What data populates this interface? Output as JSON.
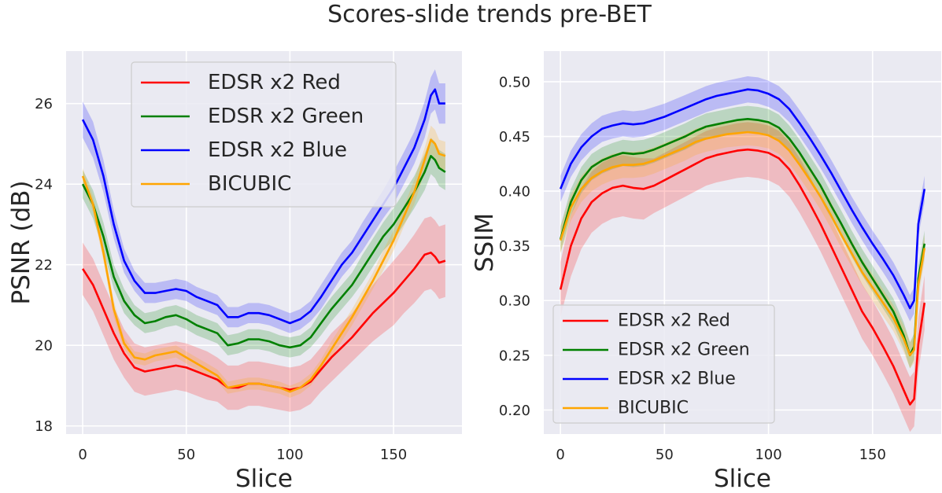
{
  "figure": {
    "title": "Scores-slide trends pre-BET"
  },
  "colors": {
    "red": "#ff0000",
    "green": "#008000",
    "blue": "#0000ff",
    "orange": "#ffa500",
    "panel_bg": "#eaeaf2",
    "grid": "#ffffff"
  },
  "chart_data": [
    {
      "type": "line",
      "title": "",
      "xlabel": "Slice",
      "ylabel": "PSNR (dB)",
      "xlim": [
        -8,
        183
      ],
      "ylim": [
        17.8,
        27.3
      ],
      "xticks": [
        0,
        50,
        100,
        150
      ],
      "xtick_labels": [
        "0",
        "50",
        "100",
        "150"
      ],
      "yticks": [
        18,
        20,
        22,
        24,
        26
      ],
      "ytick_labels": [
        "18",
        "20",
        "22",
        "24",
        "26"
      ],
      "grid": true,
      "legend_position": "top-center",
      "band": "shaded ± spread around each line",
      "x": [
        0,
        5,
        10,
        15,
        20,
        25,
        30,
        35,
        40,
        45,
        50,
        55,
        60,
        65,
        70,
        75,
        80,
        85,
        90,
        95,
        100,
        105,
        110,
        115,
        120,
        125,
        130,
        135,
        140,
        145,
        150,
        155,
        160,
        165,
        168,
        170,
        172,
        175
      ],
      "series": [
        {
          "name": "EDSR x2 Red",
          "color": "red",
          "values": [
            21.9,
            21.5,
            20.9,
            20.3,
            19.8,
            19.45,
            19.35,
            19.4,
            19.45,
            19.5,
            19.45,
            19.35,
            19.25,
            19.15,
            18.95,
            18.95,
            19.05,
            19.05,
            19.0,
            18.95,
            18.9,
            18.95,
            19.1,
            19.4,
            19.7,
            19.95,
            20.2,
            20.5,
            20.8,
            21.05,
            21.3,
            21.6,
            21.9,
            22.25,
            22.3,
            22.2,
            22.05,
            22.1
          ],
          "band": [
            0.65,
            0.65,
            0.65,
            0.65,
            0.6,
            0.6,
            0.6,
            0.6,
            0.6,
            0.6,
            0.6,
            0.6,
            0.6,
            0.55,
            0.55,
            0.55,
            0.55,
            0.55,
            0.55,
            0.55,
            0.55,
            0.55,
            0.55,
            0.55,
            0.6,
            0.6,
            0.6,
            0.65,
            0.7,
            0.75,
            0.8,
            0.8,
            0.85,
            0.9,
            0.9,
            0.9,
            0.9,
            0.9
          ]
        },
        {
          "name": "EDSR x2 Green",
          "color": "green",
          "values": [
            24.0,
            23.5,
            22.7,
            21.7,
            21.1,
            20.75,
            20.55,
            20.6,
            20.7,
            20.75,
            20.65,
            20.5,
            20.4,
            20.3,
            20.0,
            20.05,
            20.15,
            20.15,
            20.1,
            20.0,
            19.95,
            20.0,
            20.2,
            20.55,
            20.9,
            21.2,
            21.5,
            21.9,
            22.3,
            22.7,
            23.0,
            23.4,
            23.8,
            24.3,
            24.7,
            24.6,
            24.4,
            24.3
          ],
          "band": [
            0.35,
            0.35,
            0.35,
            0.3,
            0.3,
            0.25,
            0.25,
            0.25,
            0.25,
            0.25,
            0.25,
            0.25,
            0.25,
            0.25,
            0.25,
            0.25,
            0.25,
            0.25,
            0.25,
            0.25,
            0.25,
            0.25,
            0.25,
            0.3,
            0.3,
            0.3,
            0.3,
            0.35,
            0.35,
            0.35,
            0.4,
            0.4,
            0.4,
            0.45,
            0.45,
            0.45,
            0.45,
            0.45
          ]
        },
        {
          "name": "EDSR x2 Blue",
          "color": "blue",
          "values": [
            25.6,
            25.1,
            24.2,
            23.0,
            22.1,
            21.6,
            21.3,
            21.3,
            21.35,
            21.4,
            21.35,
            21.2,
            21.1,
            21.0,
            20.7,
            20.7,
            20.8,
            20.8,
            20.75,
            20.65,
            20.55,
            20.65,
            20.85,
            21.2,
            21.6,
            22.0,
            22.3,
            22.7,
            23.1,
            23.5,
            23.9,
            24.4,
            24.9,
            25.6,
            26.2,
            26.35,
            26.0,
            26.0
          ],
          "band": [
            0.45,
            0.45,
            0.4,
            0.35,
            0.3,
            0.25,
            0.25,
            0.25,
            0.25,
            0.25,
            0.25,
            0.25,
            0.25,
            0.25,
            0.25,
            0.25,
            0.25,
            0.25,
            0.25,
            0.25,
            0.25,
            0.25,
            0.25,
            0.3,
            0.3,
            0.3,
            0.3,
            0.35,
            0.35,
            0.35,
            0.4,
            0.4,
            0.4,
            0.45,
            0.45,
            0.5,
            0.5,
            0.5
          ]
        },
        {
          "name": "BICUBIC",
          "color": "orange",
          "values": [
            24.2,
            23.5,
            22.3,
            20.9,
            20.05,
            19.7,
            19.65,
            19.75,
            19.8,
            19.85,
            19.7,
            19.55,
            19.4,
            19.25,
            18.95,
            19.0,
            19.05,
            19.05,
            19.0,
            18.95,
            18.85,
            18.95,
            19.15,
            19.5,
            19.9,
            20.3,
            20.7,
            21.15,
            21.6,
            22.1,
            22.6,
            23.2,
            23.8,
            24.6,
            25.1,
            25.0,
            24.75,
            24.7
          ],
          "band": [
            0.2,
            0.2,
            0.2,
            0.2,
            0.15,
            0.15,
            0.15,
            0.15,
            0.15,
            0.15,
            0.15,
            0.15,
            0.15,
            0.15,
            0.15,
            0.15,
            0.15,
            0.15,
            0.15,
            0.15,
            0.15,
            0.15,
            0.15,
            0.15,
            0.2,
            0.2,
            0.2,
            0.2,
            0.2,
            0.25,
            0.25,
            0.25,
            0.3,
            0.3,
            0.35,
            0.35,
            0.35,
            0.35
          ]
        }
      ]
    },
    {
      "type": "line",
      "title": "",
      "xlabel": "Slice",
      "ylabel": "SSIM",
      "xlim": [
        -8,
        183
      ],
      "ylim": [
        0.178,
        0.528
      ],
      "xticks": [
        0,
        50,
        100,
        150
      ],
      "xtick_labels": [
        "0",
        "50",
        "100",
        "150"
      ],
      "yticks": [
        0.2,
        0.25,
        0.3,
        0.35,
        0.4,
        0.45,
        0.5
      ],
      "ytick_labels": [
        "0.20",
        "0.25",
        "0.30",
        "0.35",
        "0.40",
        "0.45",
        "0.50"
      ],
      "grid": true,
      "legend_position": "lower-left",
      "band": "shaded ± spread around each line",
      "x": [
        0,
        5,
        10,
        15,
        20,
        25,
        30,
        35,
        40,
        45,
        50,
        55,
        60,
        65,
        70,
        75,
        80,
        85,
        90,
        95,
        100,
        105,
        110,
        115,
        120,
        125,
        130,
        135,
        140,
        145,
        150,
        155,
        160,
        165,
        168,
        170,
        172,
        175
      ],
      "series": [
        {
          "name": "EDSR x2 Red",
          "color": "red",
          "values": [
            0.31,
            0.35,
            0.375,
            0.39,
            0.398,
            0.403,
            0.405,
            0.403,
            0.402,
            0.405,
            0.41,
            0.415,
            0.42,
            0.425,
            0.43,
            0.433,
            0.435,
            0.437,
            0.438,
            0.437,
            0.435,
            0.43,
            0.42,
            0.405,
            0.388,
            0.37,
            0.35,
            0.33,
            0.31,
            0.29,
            0.275,
            0.258,
            0.24,
            0.218,
            0.205,
            0.21,
            0.26,
            0.298
          ],
          "band": [
            0.025,
            0.028,
            0.028,
            0.028,
            0.028,
            0.028,
            0.028,
            0.028,
            0.028,
            0.025,
            0.025,
            0.025,
            0.025,
            0.025,
            0.025,
            0.025,
            0.025,
            0.025,
            0.025,
            0.025,
            0.025,
            0.025,
            0.025,
            0.025,
            0.025,
            0.025,
            0.025,
            0.025,
            0.025,
            0.025,
            0.025,
            0.025,
            0.025,
            0.025,
            0.025,
            0.025,
            0.025,
            0.025
          ]
        },
        {
          "name": "EDSR x2 Green",
          "color": "green",
          "values": [
            0.356,
            0.39,
            0.41,
            0.422,
            0.428,
            0.432,
            0.435,
            0.434,
            0.435,
            0.438,
            0.442,
            0.446,
            0.45,
            0.455,
            0.459,
            0.461,
            0.463,
            0.465,
            0.466,
            0.465,
            0.463,
            0.458,
            0.448,
            0.435,
            0.42,
            0.405,
            0.387,
            0.37,
            0.352,
            0.335,
            0.32,
            0.305,
            0.29,
            0.268,
            0.25,
            0.258,
            0.32,
            0.352
          ],
          "band": [
            0.012,
            0.012,
            0.012,
            0.012,
            0.012,
            0.012,
            0.012,
            0.012,
            0.012,
            0.012,
            0.012,
            0.012,
            0.012,
            0.012,
            0.012,
            0.012,
            0.012,
            0.012,
            0.012,
            0.012,
            0.012,
            0.012,
            0.012,
            0.012,
            0.012,
            0.012,
            0.012,
            0.012,
            0.012,
            0.012,
            0.012,
            0.012,
            0.012,
            0.012,
            0.012,
            0.012,
            0.012,
            0.012
          ]
        },
        {
          "name": "EDSR x2 Blue",
          "color": "blue",
          "values": [
            0.402,
            0.425,
            0.44,
            0.45,
            0.457,
            0.46,
            0.462,
            0.461,
            0.462,
            0.465,
            0.468,
            0.472,
            0.476,
            0.48,
            0.484,
            0.487,
            0.489,
            0.491,
            0.493,
            0.492,
            0.489,
            0.484,
            0.475,
            0.462,
            0.448,
            0.433,
            0.417,
            0.4,
            0.383,
            0.367,
            0.352,
            0.338,
            0.323,
            0.305,
            0.293,
            0.3,
            0.37,
            0.402
          ],
          "band": [
            0.012,
            0.012,
            0.012,
            0.012,
            0.012,
            0.012,
            0.012,
            0.012,
            0.012,
            0.012,
            0.012,
            0.012,
            0.012,
            0.012,
            0.012,
            0.012,
            0.012,
            0.012,
            0.012,
            0.012,
            0.012,
            0.012,
            0.012,
            0.012,
            0.012,
            0.012,
            0.012,
            0.012,
            0.012,
            0.012,
            0.012,
            0.012,
            0.012,
            0.012,
            0.012,
            0.012,
            0.012,
            0.012
          ]
        },
        {
          "name": "BICUBIC",
          "color": "orange",
          "values": [
            0.355,
            0.385,
            0.402,
            0.412,
            0.418,
            0.422,
            0.424,
            0.424,
            0.425,
            0.428,
            0.432,
            0.436,
            0.44,
            0.445,
            0.448,
            0.45,
            0.452,
            0.453,
            0.454,
            0.453,
            0.451,
            0.446,
            0.437,
            0.424,
            0.41,
            0.395,
            0.378,
            0.36,
            0.343,
            0.326,
            0.312,
            0.298,
            0.284,
            0.265,
            0.25,
            0.255,
            0.315,
            0.348
          ],
          "band": [
            0.012,
            0.012,
            0.012,
            0.012,
            0.012,
            0.012,
            0.012,
            0.012,
            0.012,
            0.012,
            0.012,
            0.012,
            0.012,
            0.012,
            0.012,
            0.012,
            0.012,
            0.012,
            0.012,
            0.012,
            0.012,
            0.012,
            0.012,
            0.012,
            0.012,
            0.012,
            0.012,
            0.012,
            0.012,
            0.012,
            0.012,
            0.012,
            0.012,
            0.012,
            0.012,
            0.012,
            0.012,
            0.012
          ]
        }
      ]
    }
  ]
}
